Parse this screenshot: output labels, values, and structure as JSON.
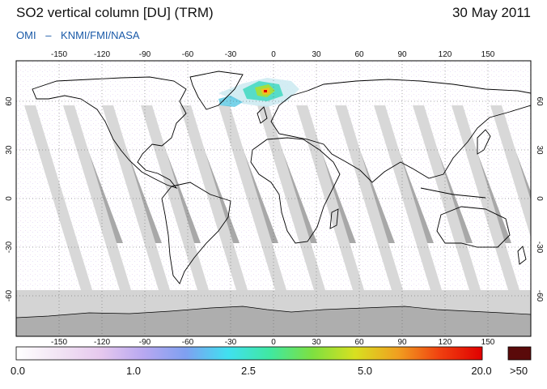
{
  "header": {
    "title": "SO2 vertical column [DU] (TRM)",
    "date": "30 May 2011",
    "credit_instrument": "OMI",
    "credit_sep": "–",
    "credit_orgs": "KNMI/FMI/NASA"
  },
  "map": {
    "lon_ticks": [
      "-150",
      "-120",
      "-90",
      "-60",
      "-30",
      "0",
      "30",
      "60",
      "90",
      "120",
      "150"
    ],
    "lat_ticks": [
      "60",
      "30",
      "0",
      "-30",
      "-60"
    ],
    "colors": {
      "background_low": "#ffffff",
      "missing_data": "#d8d8d8",
      "row_anomaly": "#a8a8a8",
      "antarctica": "#aeaeae",
      "coastline": "#000000",
      "grid": "#555555"
    },
    "features": [
      "iceland-so2-plume",
      "grimsvotn-eruption-area"
    ]
  },
  "colorbar": {
    "labels": [
      "0.0",
      "1.0",
      "2.5",
      "5.0",
      "20.0"
    ],
    "overflow_label": ">50",
    "overflow_color": "#5a0a0a",
    "stops": [
      "#ffffff",
      "#f2e4f4",
      "#e6c8ee",
      "#b8a8f0",
      "#7fa0f0",
      "#40e0f0",
      "#40e8a0",
      "#7ee040",
      "#d8e020",
      "#f0a020",
      "#f04010",
      "#e00000"
    ]
  }
}
